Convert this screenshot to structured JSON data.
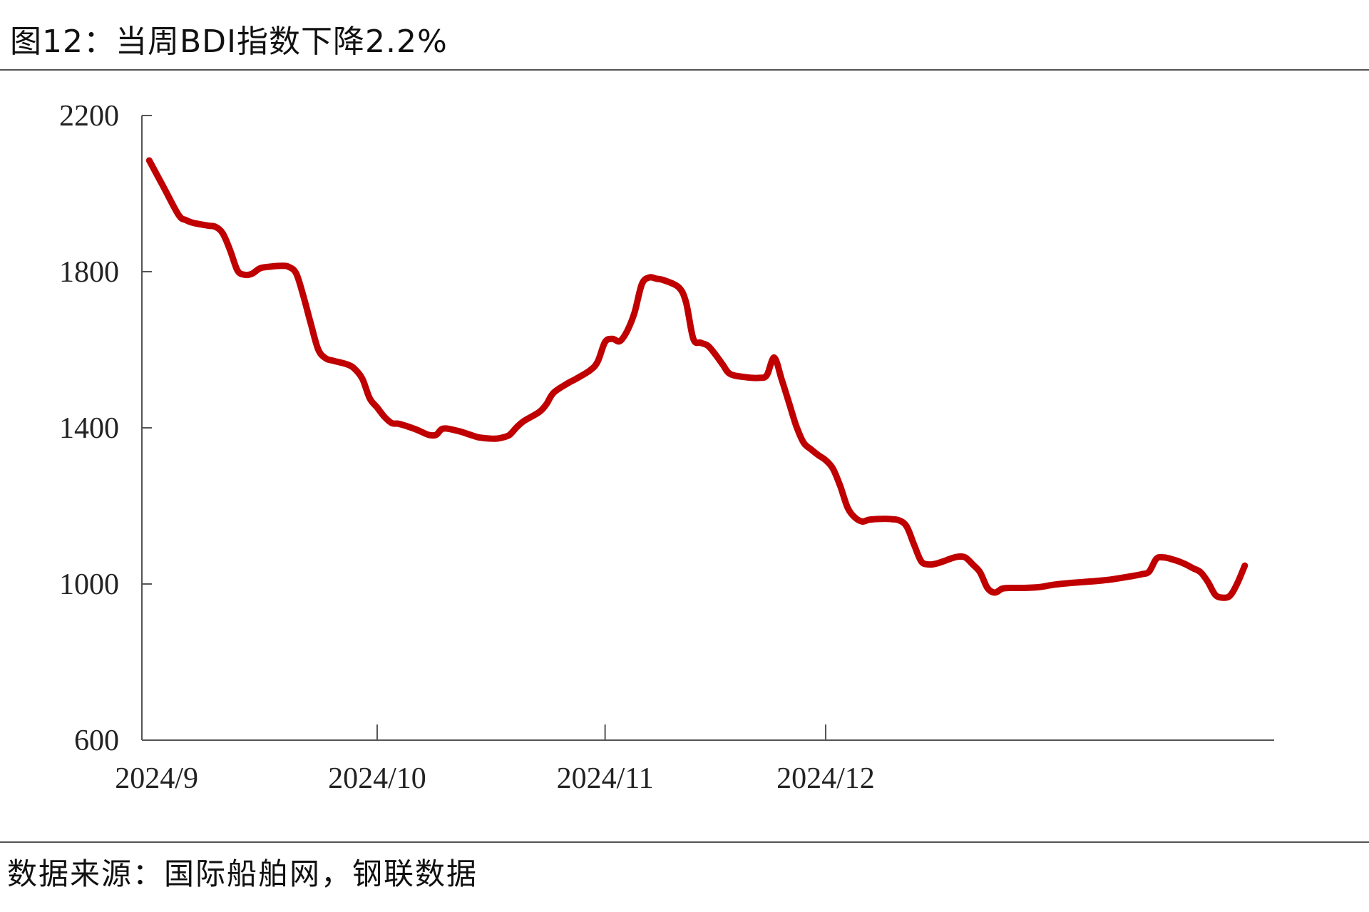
{
  "title": "图12：当周BDI指数下降2.2%",
  "source": "数据来源：国际船舶网，钢联数据",
  "chart_data": {
    "type": "line",
    "title": "图12：当周BDI指数下降2.2%",
    "xlabel": "",
    "ylabel": "",
    "ylim": [
      600,
      2200
    ],
    "yticks": [
      600,
      1000,
      1400,
      1800,
      2200
    ],
    "ytick_labels": [
      "600",
      "1000",
      "1400",
      "1800",
      "2200"
    ],
    "xticks": [
      {
        "label": "2024/9",
        "date": "2024-09-01"
      },
      {
        "label": "2024/10",
        "date": "2024-10-01"
      },
      {
        "label": "2024/11",
        "date": "2024-11-01"
      },
      {
        "label": "2024/12",
        "date": "2024-12-01"
      }
    ],
    "grid": false,
    "legend": "none",
    "line_color": "#C00000",
    "series": [
      {
        "name": "",
        "points": [
          [
            "2024-08-31",
            2085
          ],
          [
            "2024-09-02",
            2015
          ],
          [
            "2024-09-04",
            1945
          ],
          [
            "2024-09-05",
            1932
          ],
          [
            "2024-09-06",
            1925
          ],
          [
            "2024-09-08",
            1918
          ],
          [
            "2024-09-09",
            1915
          ],
          [
            "2024-09-10",
            1898
          ],
          [
            "2024-09-11",
            1855
          ],
          [
            "2024-09-12",
            1803
          ],
          [
            "2024-09-13",
            1792
          ],
          [
            "2024-09-14",
            1795
          ],
          [
            "2024-09-15",
            1808
          ],
          [
            "2024-09-16",
            1812
          ],
          [
            "2024-09-18",
            1815
          ],
          [
            "2024-09-19",
            1812
          ],
          [
            "2024-09-20",
            1795
          ],
          [
            "2024-09-21",
            1735
          ],
          [
            "2024-09-22",
            1665
          ],
          [
            "2024-09-23",
            1600
          ],
          [
            "2024-09-24",
            1578
          ],
          [
            "2024-09-25",
            1572
          ],
          [
            "2024-09-27",
            1562
          ],
          [
            "2024-09-28",
            1550
          ],
          [
            "2024-09-29",
            1525
          ],
          [
            "2024-09-30",
            1475
          ],
          [
            "2024-10-01",
            1452
          ],
          [
            "2024-10-02",
            1428
          ],
          [
            "2024-10-03",
            1412
          ],
          [
            "2024-10-04",
            1410
          ],
          [
            "2024-10-06",
            1398
          ],
          [
            "2024-10-07",
            1390
          ],
          [
            "2024-10-08",
            1382
          ],
          [
            "2024-10-09",
            1382
          ],
          [
            "2024-10-10",
            1398
          ],
          [
            "2024-10-12",
            1392
          ],
          [
            "2024-10-14",
            1380
          ],
          [
            "2024-10-15",
            1375
          ],
          [
            "2024-10-17",
            1372
          ],
          [
            "2024-10-18",
            1375
          ],
          [
            "2024-10-19",
            1382
          ],
          [
            "2024-10-20",
            1402
          ],
          [
            "2024-10-21",
            1418
          ],
          [
            "2024-10-23",
            1440
          ],
          [
            "2024-10-24",
            1460
          ],
          [
            "2024-10-25",
            1490
          ],
          [
            "2024-10-27",
            1515
          ],
          [
            "2024-10-28",
            1525
          ],
          [
            "2024-10-30",
            1548
          ],
          [
            "2024-10-31",
            1570
          ],
          [
            "2024-11-01",
            1620
          ],
          [
            "2024-11-02",
            1628
          ],
          [
            "2024-11-03",
            1622
          ],
          [
            "2024-11-04",
            1648
          ],
          [
            "2024-11-05",
            1695
          ],
          [
            "2024-11-06",
            1768
          ],
          [
            "2024-11-07",
            1785
          ],
          [
            "2024-11-08",
            1782
          ],
          [
            "2024-11-09",
            1778
          ],
          [
            "2024-11-11",
            1760
          ],
          [
            "2024-11-12",
            1722
          ],
          [
            "2024-11-13",
            1628
          ],
          [
            "2024-11-14",
            1618
          ],
          [
            "2024-11-15",
            1610
          ],
          [
            "2024-11-16",
            1588
          ],
          [
            "2024-11-17",
            1562
          ],
          [
            "2024-11-18",
            1538
          ],
          [
            "2024-11-20",
            1530
          ],
          [
            "2024-11-22",
            1528
          ],
          [
            "2024-11-23",
            1535
          ],
          [
            "2024-11-24",
            1580
          ],
          [
            "2024-11-25",
            1525
          ],
          [
            "2024-11-26",
            1465
          ],
          [
            "2024-11-27",
            1405
          ],
          [
            "2024-11-28",
            1362
          ],
          [
            "2024-11-29",
            1345
          ],
          [
            "2024-11-30",
            1330
          ],
          [
            "2024-12-01",
            1317
          ],
          [
            "2024-12-02",
            1295
          ],
          [
            "2024-12-03",
            1250
          ],
          [
            "2024-12-04",
            1195
          ],
          [
            "2024-12-05",
            1170
          ],
          [
            "2024-12-06",
            1160
          ],
          [
            "2024-12-07",
            1165
          ],
          [
            "2024-12-09",
            1167
          ],
          [
            "2024-12-10",
            1166
          ],
          [
            "2024-12-11",
            1163
          ],
          [
            "2024-12-12",
            1148
          ],
          [
            "2024-12-13",
            1102
          ],
          [
            "2024-12-14",
            1058
          ],
          [
            "2024-12-15",
            1050
          ],
          [
            "2024-12-16",
            1052
          ],
          [
            "2024-12-17",
            1058
          ],
          [
            "2024-12-18",
            1065
          ],
          [
            "2024-12-19",
            1070
          ],
          [
            "2024-12-20",
            1068
          ],
          [
            "2024-12-21",
            1050
          ],
          [
            "2024-12-22",
            1030
          ],
          [
            "2024-12-23",
            990
          ],
          [
            "2024-12-24",
            978
          ],
          [
            "2024-12-25",
            988
          ],
          [
            "2024-12-26",
            990
          ],
          [
            "2024-12-28",
            990
          ],
          [
            "2024-12-30",
            992
          ],
          [
            "2025-01-01",
            998
          ],
          [
            "2025-01-03",
            1002
          ],
          [
            "2025-01-05",
            1005
          ],
          [
            "2025-01-07",
            1008
          ],
          [
            "2025-01-09",
            1012
          ],
          [
            "2025-01-11",
            1018
          ],
          [
            "2025-01-13",
            1025
          ],
          [
            "2025-01-14",
            1032
          ],
          [
            "2025-01-15",
            1065
          ],
          [
            "2025-01-16",
            1068
          ],
          [
            "2025-01-17",
            1064
          ],
          [
            "2025-01-18",
            1058
          ],
          [
            "2025-01-19",
            1050
          ],
          [
            "2025-01-20",
            1040
          ],
          [
            "2025-01-21",
            1030
          ],
          [
            "2025-01-22",
            1005
          ],
          [
            "2025-01-23",
            972
          ],
          [
            "2025-01-24",
            965
          ],
          [
            "2025-01-25",
            970
          ],
          [
            "2025-01-26",
            1002
          ],
          [
            "2025-01-27",
            1047
          ]
        ]
      }
    ]
  }
}
